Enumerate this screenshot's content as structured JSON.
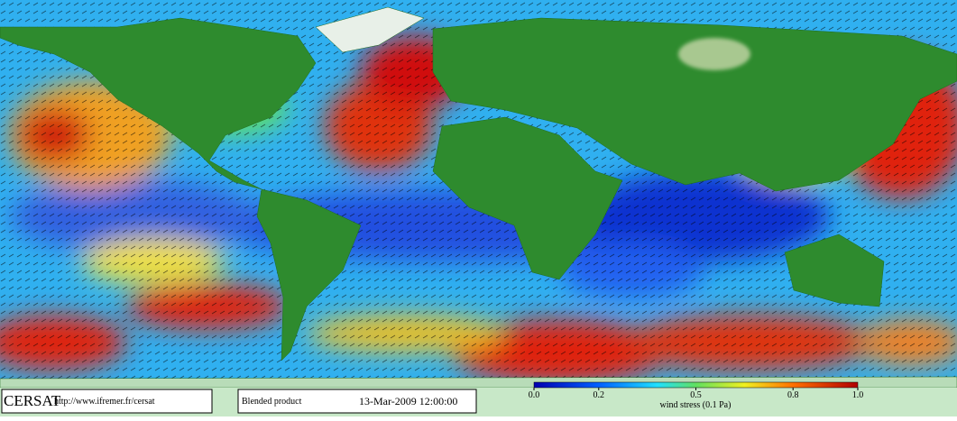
{
  "footer": {
    "logo": "CERSAT",
    "url": "http://www.ifremer.fr/cersat",
    "product": "Blended product",
    "date": "13-Mar-2009 12:00:00"
  },
  "colorbar": {
    "label": "wind stress (0.1 Pa)",
    "range": [
      0,
      1
    ],
    "ticks": [
      {
        "value": 0,
        "label": "0.0"
      },
      0.2,
      0.5,
      0.8,
      {
        "value": 1,
        "label": "1.0"
      }
    ]
  }
}
